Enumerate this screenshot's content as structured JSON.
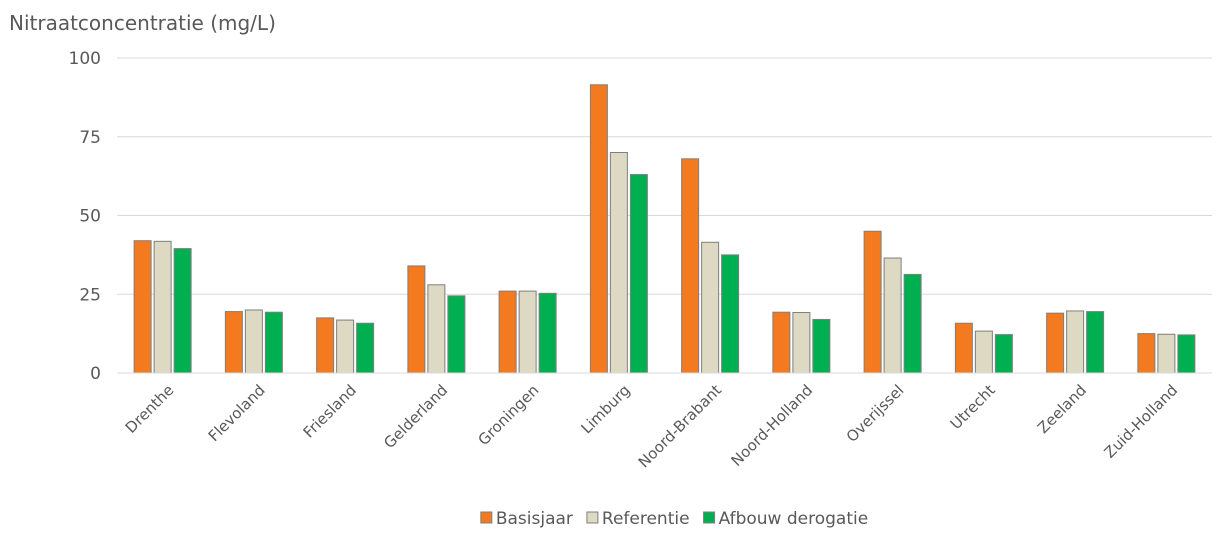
{
  "chart_data": {
    "type": "bar",
    "title": "",
    "ylabel": "Nitraatconcentratie (mg/L)",
    "xlabel": "",
    "ylim": [
      0,
      100
    ],
    "yticks": [
      0,
      25,
      50,
      75,
      100
    ],
    "grid": true,
    "legend_position": "bottom",
    "categories": [
      "Drenthe",
      "Flevoland",
      "Friesland",
      "Gelderland",
      "Groningen",
      "Limburg",
      "Noord-Brabant",
      "Noord-Holland",
      "Overijssel",
      "Utrecht",
      "Zeeland",
      "Zuid-Holland"
    ],
    "series": [
      {
        "name": "Basisjaar",
        "color": "#F47A1F",
        "values": [
          42,
          19.5,
          17.5,
          34,
          26,
          91.5,
          68,
          19.3,
          45,
          15.8,
          19,
          12.5
        ]
      },
      {
        "name": "Referentie",
        "color": "#DDD9C3",
        "values": [
          41.8,
          20,
          16.8,
          28,
          26,
          70,
          41.5,
          19.2,
          36.5,
          13.3,
          19.7,
          12.3
        ]
      },
      {
        "name": "Afbouw derogatie",
        "color": "#00B050",
        "values": [
          39.5,
          19.3,
          15.8,
          24.5,
          25.3,
          63,
          37.5,
          17,
          31.3,
          12.2,
          19.5,
          12.1
        ]
      }
    ]
  }
}
